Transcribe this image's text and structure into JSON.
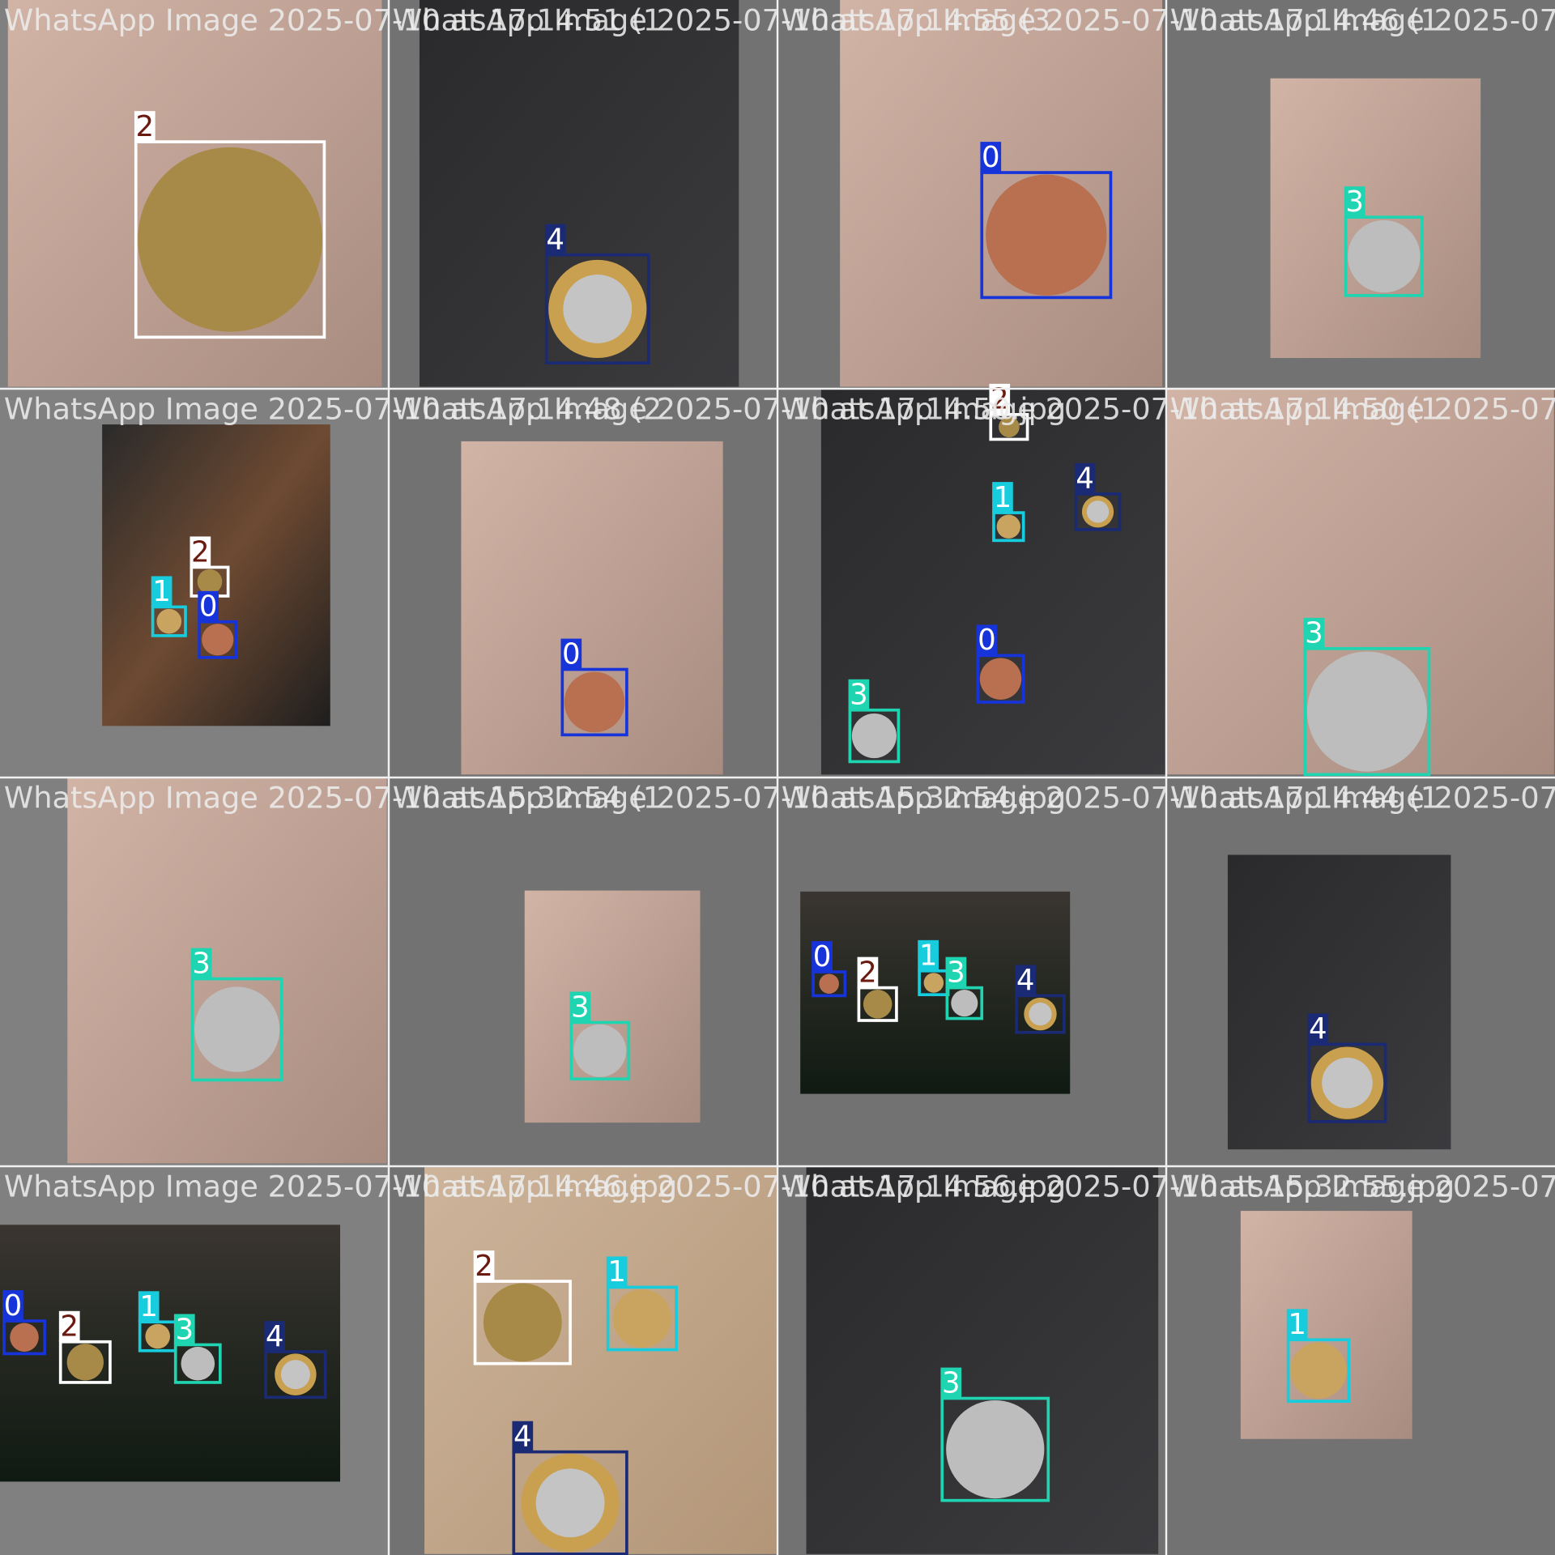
{
  "tiles": [
    {
      "title": "WhatsApp Image 2025-07-10 at 17.14.51 (1",
      "boxes": [
        {
          "label": "2"
        }
      ]
    },
    {
      "title": "WhatsApp Image 2025-07-10 at 17.14.55 (3",
      "boxes": [
        {
          "label": "4"
        }
      ]
    },
    {
      "title": "WhatsApp Image 2025-07-10 at 17.14.46 (1",
      "boxes": [
        {
          "label": "0"
        }
      ]
    },
    {
      "title": "WhatsApp Image 2025-07-1",
      "boxes": [
        {
          "label": "3"
        }
      ]
    },
    {
      "title": "WhatsApp Image 2025-07-10 at 17.14.48 (2",
      "boxes": [
        {
          "label": "2"
        },
        {
          "label": "1"
        },
        {
          "label": "0"
        }
      ]
    },
    {
      "title": "WhatsApp Image 2025-07-10 at 17.14.50.jpg",
      "boxes": [
        {
          "label": "0"
        }
      ]
    },
    {
      "title": "WhatsApp Image 2025-07-10 at 17.14.50 (1",
      "boxes": [
        {
          "label": "2"
        },
        {
          "label": "1"
        },
        {
          "label": "4"
        },
        {
          "label": "0"
        },
        {
          "label": "3"
        }
      ]
    },
    {
      "title": "WhatsApp Image 2025-07-1",
      "boxes": [
        {
          "label": "3"
        }
      ]
    },
    {
      "title": "WhatsApp Image 2025-07-10 at 15.32.54 (1",
      "boxes": [
        {
          "label": "3"
        }
      ]
    },
    {
      "title": "WhatsApp Image 2025-07-10 at 15.32.54.jpg",
      "boxes": [
        {
          "label": "3"
        }
      ]
    },
    {
      "title": "WhatsApp Image 2025-07-10 at 17.14.44 (1",
      "boxes": [
        {
          "label": "0"
        },
        {
          "label": "2"
        },
        {
          "label": "1"
        },
        {
          "label": "3"
        },
        {
          "label": "4"
        }
      ]
    },
    {
      "title": "WhatsApp Image 2025-07-1",
      "boxes": [
        {
          "label": "4"
        }
      ]
    },
    {
      "title": "WhatsApp Image 2025-07-10 at 17.14.46.jpg",
      "boxes": [
        {
          "label": "0"
        },
        {
          "label": "2"
        },
        {
          "label": "1"
        },
        {
          "label": "3"
        },
        {
          "label": "4"
        }
      ]
    },
    {
      "title": "WhatsApp Image 2025-07-10 at 17.14.56.jpg",
      "boxes": [
        {
          "label": "2"
        },
        {
          "label": "1"
        },
        {
          "label": "4"
        }
      ]
    },
    {
      "title": "WhatsApp Image 2025-07-10 at 15.32.55.jpg",
      "boxes": [
        {
          "label": "3"
        }
      ]
    },
    {
      "title": "WhatsApp Image 2025-07-1",
      "boxes": [
        {
          "label": "1"
        }
      ]
    }
  ]
}
